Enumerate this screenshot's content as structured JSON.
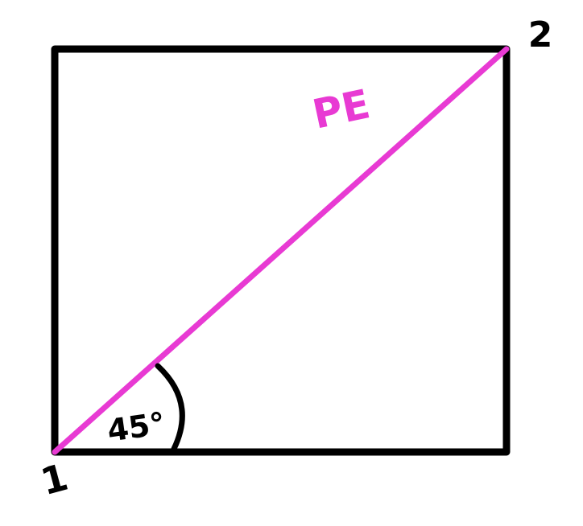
{
  "diagram": {
    "labels": {
      "corner_start": "1",
      "corner_end": "2",
      "diagonal": "PE",
      "angle": "45°"
    },
    "colors": {
      "outline": "#000000",
      "diagonal": "#e83ad3",
      "background": "#ffffff"
    }
  }
}
